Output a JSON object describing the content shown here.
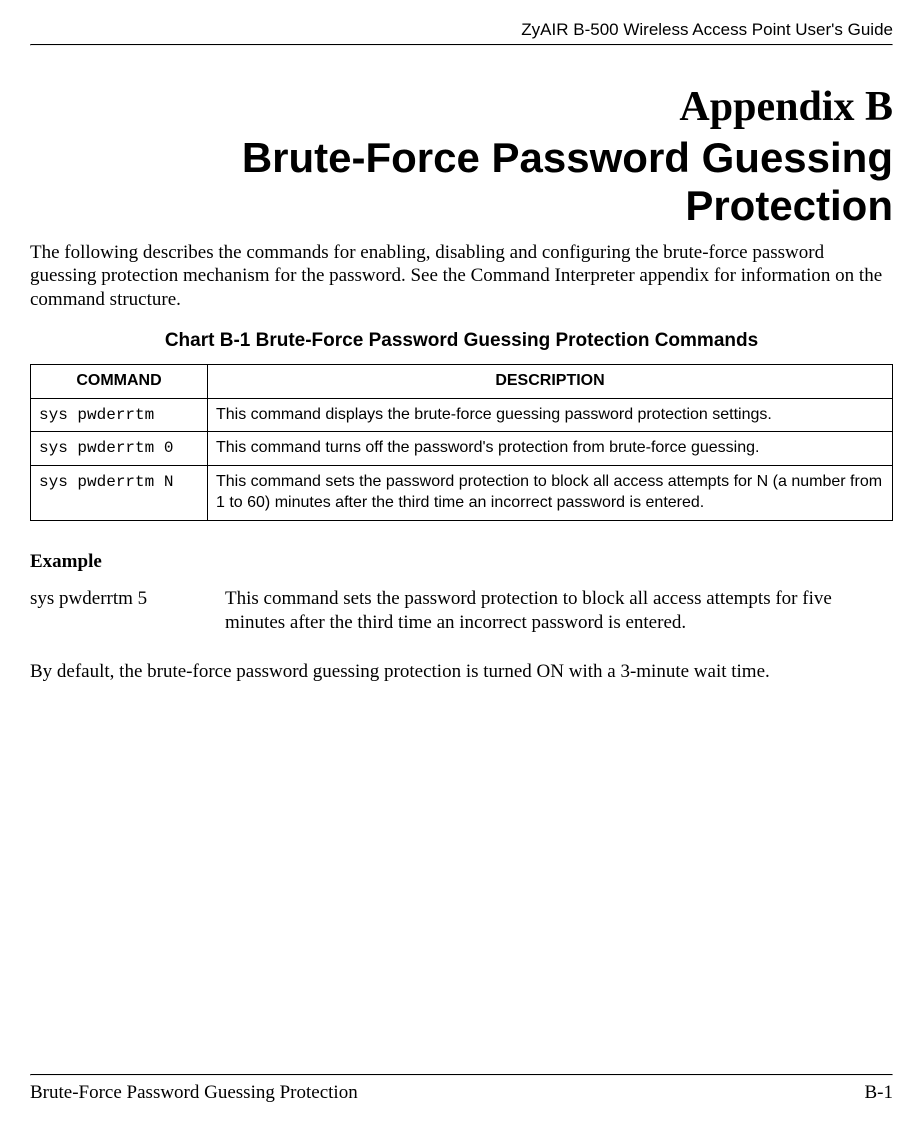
{
  "header": {
    "guide_title": "ZyAIR B-500 Wireless Access Point User's Guide"
  },
  "title": {
    "appendix": "Appendix B",
    "subtitle": "Brute-Force Password Guessing Protection"
  },
  "intro": "The following describes the commands for enabling, disabling and configuring the brute-force password guessing protection mechanism for the password. See the Command Interpreter appendix for information on the command structure.",
  "chart": {
    "caption": "Chart B-1 Brute-Force Password Guessing Protection Commands",
    "columns": [
      "COMMAND",
      "DESCRIPTION"
    ],
    "rows": [
      {
        "cmd": "sys pwderrtm",
        "desc": "This command displays the brute-force guessing password protection settings."
      },
      {
        "cmd": "sys pwderrtm 0",
        "desc": "This command turns off the password's protection from brute-force guessing."
      },
      {
        "cmd": "sys pwderrtm N",
        "desc": "This command sets the password protection to block all access attempts for N (a number from 1 to 60) minutes after the third time an incorrect password is entered."
      }
    ]
  },
  "example": {
    "heading": "Example",
    "cmd": "sys pwderrtm 5",
    "desc": "This command sets the password protection to block all access attempts for five minutes after the third time an incorrect password is entered."
  },
  "default_note": "By default, the brute-force password guessing protection is turned ON with a 3-minute wait time.",
  "footer": {
    "section": "Brute-Force Password Guessing Protection",
    "page": "B-1"
  }
}
